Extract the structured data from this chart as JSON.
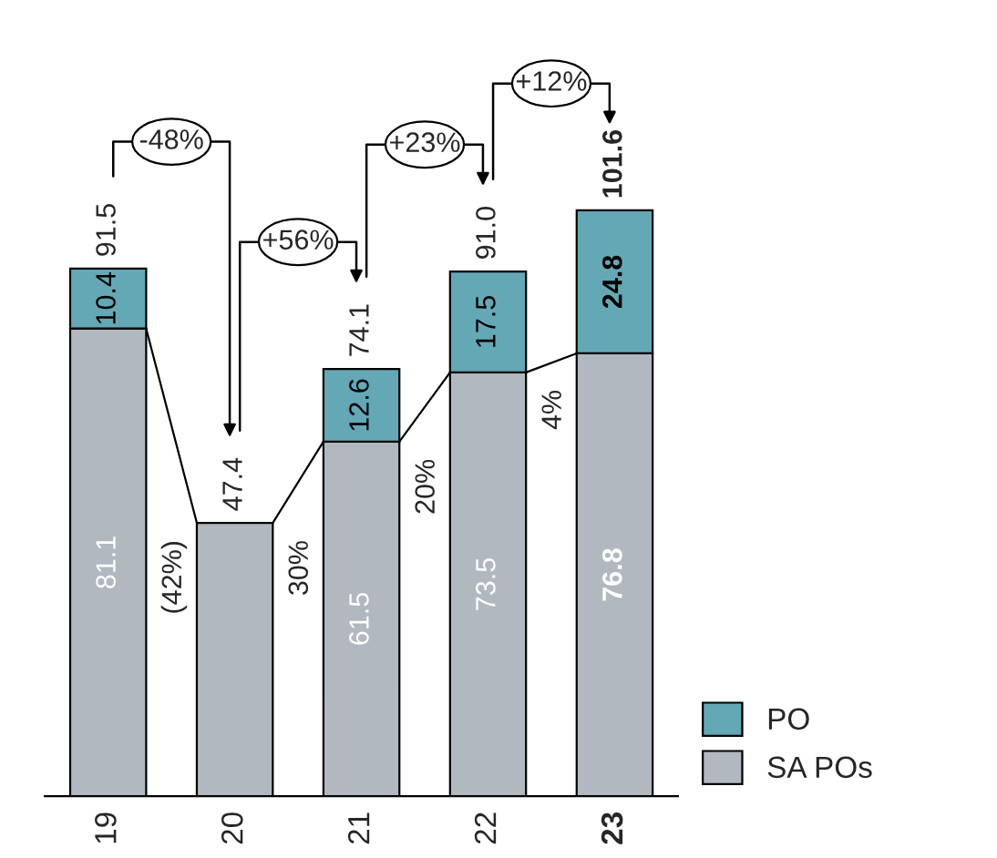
{
  "chart_data": {
    "type": "bar",
    "stacked": true,
    "categories": [
      "19",
      "20",
      "21",
      "22",
      "23"
    ],
    "series": [
      {
        "name": "SA POs",
        "color": "#b1b8c0",
        "values": [
          81.1,
          47.4,
          61.5,
          73.5,
          76.8
        ],
        "value_labels": [
          "81.1",
          null,
          "61.5",
          "73.5",
          "76.8"
        ]
      },
      {
        "name": "PO",
        "color": "#64a8b6",
        "values": [
          10.4,
          null,
          12.6,
          17.5,
          24.8
        ],
        "value_labels": [
          "10.4",
          null,
          "12.6",
          "17.5",
          "24.8"
        ]
      }
    ],
    "totals": [
      "91.5",
      "47.4",
      "74.1",
      "91.0",
      "101.6"
    ],
    "annotations": [
      "(42%)",
      "30%",
      "20%",
      "4%",
      "-48%",
      "+56%",
      "+23%",
      "+12%"
    ],
    "legend": "bottom right",
    "tick_labels": "x",
    "grid": false
  }
}
